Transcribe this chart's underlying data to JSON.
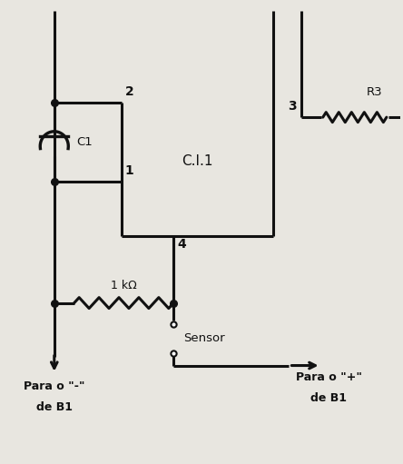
{
  "bg_color": "#e8e6e0",
  "line_color": "#111111",
  "line_width": 2.2,
  "fig_width": 4.44,
  "fig_height": 5.11,
  "ci1_label": "C.I.1",
  "c1_label": "C1",
  "r3_label": "R3",
  "sensor_label": "Sensor",
  "neg_label1": "Para o \"-\"",
  "neg_label2": "de B1",
  "pos_label1": "Para o \"+\"",
  "pos_label2": "de B1",
  "res1k_label": "1 kΩ",
  "node2_label": "2",
  "node1_label": "1",
  "node3_label": "3",
  "node4_label": "4",
  "xlim": [
    0,
    10
  ],
  "ylim": [
    0,
    11
  ]
}
